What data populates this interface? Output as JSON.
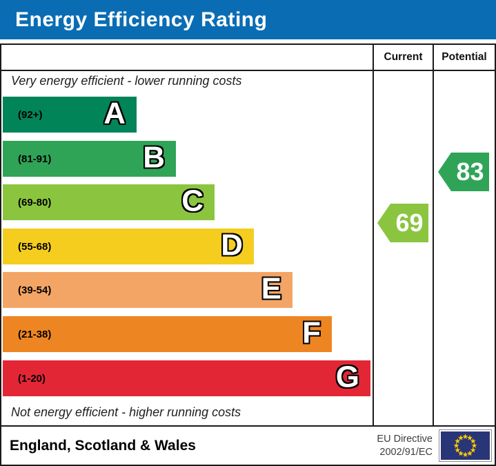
{
  "title": "Energy Efficiency Rating",
  "colors": {
    "title_bar_bg": "#0a6db4",
    "border": "#1a1a1a",
    "flag_navy": "#283577",
    "flag_star": "#ffcc00"
  },
  "columns": {
    "current": "Current",
    "potential": "Potential"
  },
  "top_note": "Very energy efficient - lower running costs",
  "bottom_note": "Not energy efficient - higher running costs",
  "bands": [
    {
      "letter": "A",
      "range": "(92+)",
      "color": "#028459"
    },
    {
      "letter": "B",
      "range": "(81-91)",
      "color": "#2fa457"
    },
    {
      "letter": "C",
      "range": "(69-80)",
      "color": "#8bc53f"
    },
    {
      "letter": "D",
      "range": "(55-68)",
      "color": "#f5cd1f"
    },
    {
      "letter": "E",
      "range": "(39-54)",
      "color": "#f3a566"
    },
    {
      "letter": "F",
      "range": "(21-38)",
      "color": "#ee8523"
    },
    {
      "letter": "G",
      "range": "(1-20)",
      "color": "#e32636"
    }
  ],
  "ratings": {
    "current": {
      "value": "69",
      "color": "#8bc53f"
    },
    "potential": {
      "value": "83",
      "color": "#2fa457"
    }
  },
  "footer": {
    "region": "England, Scotland & Wales",
    "directive_line1": "EU Directive",
    "directive_line2": "2002/91/EC"
  },
  "chart_data": {
    "type": "bar",
    "title": "Energy Efficiency Rating",
    "categories": [
      "A",
      "B",
      "C",
      "D",
      "E",
      "F",
      "G"
    ],
    "band_score_ranges": [
      "92+",
      "81-91",
      "69-80",
      "55-68",
      "39-54",
      "21-38",
      "1-20"
    ],
    "band_colors": [
      "#028459",
      "#2fa457",
      "#8bc53f",
      "#f5cd1f",
      "#f3a566",
      "#ee8523",
      "#e32636"
    ],
    "bar_relative_widths": [
      194,
      251,
      307,
      364,
      420,
      477,
      533
    ],
    "series": [
      {
        "name": "Current",
        "value": 69,
        "band": "C"
      },
      {
        "name": "Potential",
        "value": 83,
        "band": "B"
      }
    ],
    "annotations": [
      "Very energy efficient - lower running costs",
      "Not energy efficient - higher running costs"
    ],
    "legend_position": "none",
    "footer": "England, Scotland & Wales — EU Directive 2002/91/EC"
  }
}
